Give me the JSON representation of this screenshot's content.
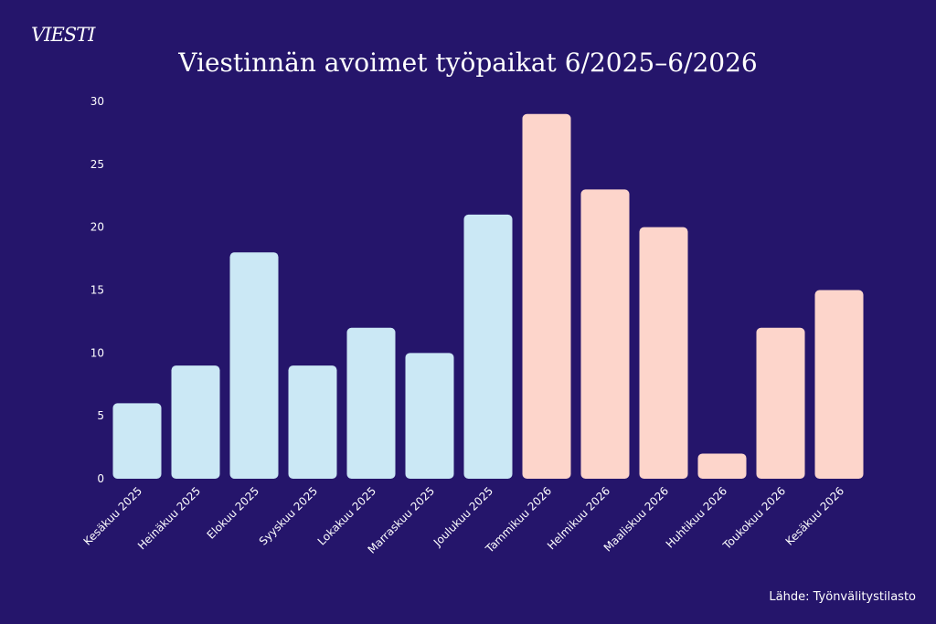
{
  "logo": "VIESTI",
  "source": "Lähde: Työnvälitystilasto",
  "colors": {
    "background": "#25156b",
    "bar_2025": "#cbe8f5",
    "bar_2026": "#fdd5cb",
    "text": "#ffffff"
  },
  "chart_data": {
    "type": "bar",
    "title": "Viestinnän avoimet työpaikat 6/2025–6/2026",
    "xlabel": "",
    "ylabel": "",
    "ylim": [
      0,
      30
    ],
    "yticks": [
      0,
      5,
      10,
      15,
      20,
      25,
      30
    ],
    "grid": false,
    "categories": [
      "Kesäkuu 2025",
      "Heinäkuu 2025",
      "Elokuu 2025",
      "Syyskuu 2025",
      "Lokakuu 2025",
      "Marraskuu 2025",
      "Joulukuu 2025",
      "Tammikuu 2026",
      "Helmikuu 2026",
      "Maaliskuu 2026",
      "Huhtikuu 2026",
      "Toukokuu 2026",
      "Kesäkuu 2026"
    ],
    "values": [
      6,
      9,
      18,
      9,
      12,
      10,
      21,
      29,
      23,
      20,
      2,
      12,
      15
    ],
    "bar_colors": [
      "#cbe8f5",
      "#cbe8f5",
      "#cbe8f5",
      "#cbe8f5",
      "#cbe8f5",
      "#cbe8f5",
      "#cbe8f5",
      "#fdd5cb",
      "#fdd5cb",
      "#fdd5cb",
      "#fdd5cb",
      "#fdd5cb",
      "#fdd5cb"
    ]
  }
}
